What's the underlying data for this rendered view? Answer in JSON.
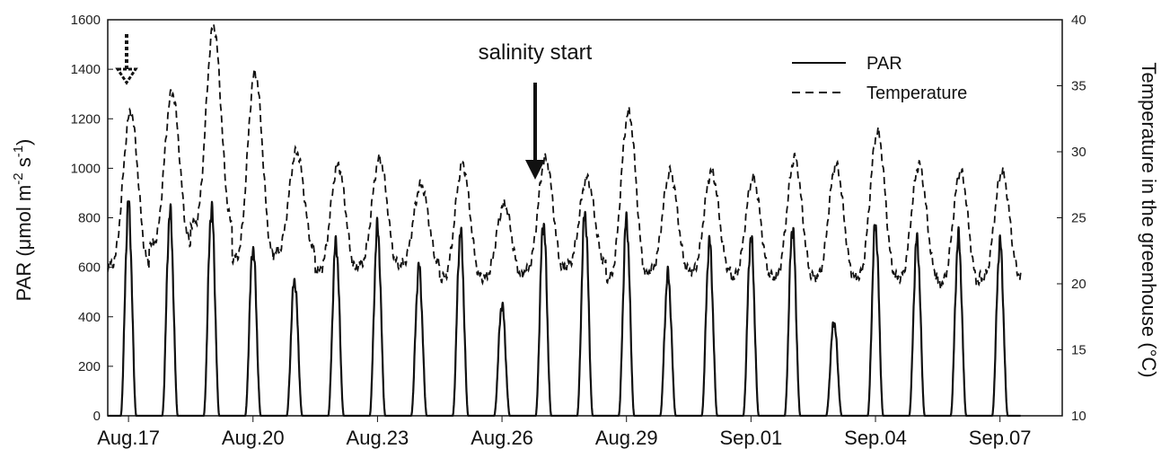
{
  "chart_data": {
    "type": "line",
    "xlabel": "",
    "ylabel_left": [
      "PAR (μmol m",
      "-2",
      " s",
      "-1",
      ")"
    ],
    "ylabel_right": "Temperature in the greenhouse (°C)",
    "y_left_lim": [
      0,
      1600
    ],
    "y_left_ticks": [
      "0",
      "200",
      "400",
      "600",
      "800",
      "1000",
      "1200",
      "1400",
      "1600"
    ],
    "y_right_lim": [
      10,
      40
    ],
    "y_right_ticks": [
      "10",
      "15",
      "20",
      "25",
      "30",
      "35",
      "40"
    ],
    "x_ticks": [
      {
        "day": 0,
        "label": "Aug.17"
      },
      {
        "day": 3,
        "label": "Aug.20"
      },
      {
        "day": 6,
        "label": "Aug.23"
      },
      {
        "day": 9,
        "label": "Aug.26"
      },
      {
        "day": 12,
        "label": "Aug.29"
      },
      {
        "day": 15,
        "label": "Sep.01"
      },
      {
        "day": 18,
        "label": "Sep.04"
      },
      {
        "day": 21,
        "label": "Sep.07"
      }
    ],
    "x_range_days": [
      -0.5,
      22.5
    ],
    "grid": false,
    "legend_position": "top-right",
    "series": [
      {
        "name": "PAR",
        "axis": "left",
        "style": "solid",
        "daily_peaks": [
          850,
          820,
          840,
          680,
          550,
          700,
          760,
          600,
          740,
          450,
          780,
          820,
          790,
          570,
          700,
          720,
          760,
          380,
          770,
          710,
          720,
          700
        ]
      },
      {
        "name": "Temperature",
        "axis": "right",
        "style": "dashed",
        "daily_max": [
          33,
          34.5,
          39.5,
          36,
          30,
          29,
          29.5,
          27.5,
          29,
          26,
          29.5,
          28,
          33,
          28.5,
          28.5,
          28,
          29.5,
          29,
          31.5,
          29,
          28.5,
          28.5
        ],
        "daily_min": [
          21.5,
          23,
          24.5,
          22,
          22.5,
          21,
          21.5,
          21.5,
          20.5,
          20.5,
          21,
          21.5,
          20.5,
          21,
          21,
          20.5,
          20.5,
          20.5,
          20.5,
          20.5,
          20,
          20.5
        ]
      }
    ],
    "annotations": [
      {
        "text": "salinity start",
        "day": 8.55,
        "arrow": "solid"
      },
      {
        "text": "",
        "day": 0.35,
        "arrow": "dotted"
      }
    ]
  }
}
